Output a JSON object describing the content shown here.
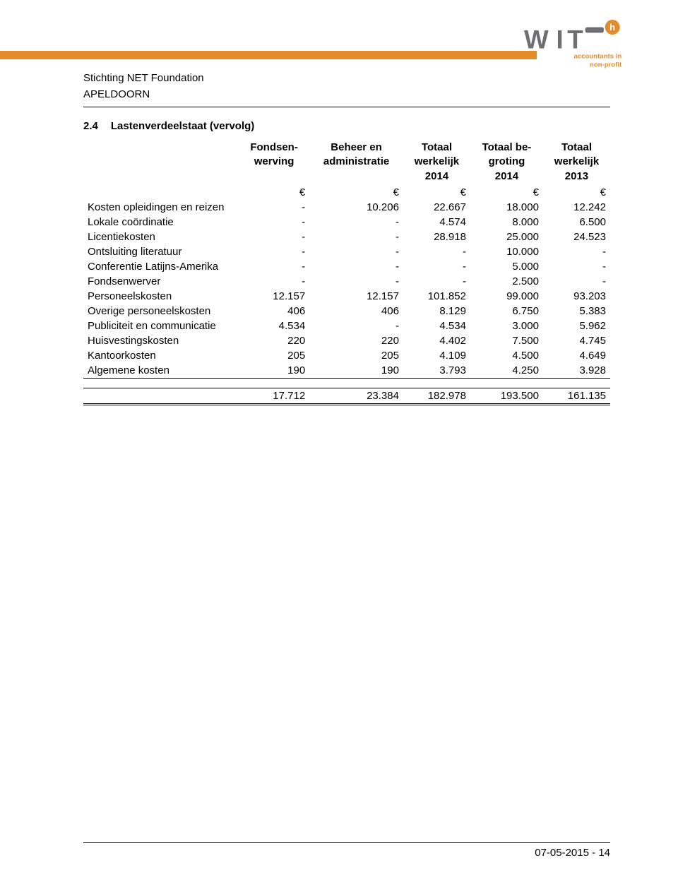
{
  "colors": {
    "accent_orange": "#e28c2b",
    "logo_gray": "#6f6f73",
    "text": "#000000",
    "background": "#ffffff"
  },
  "logo": {
    "text_main": "WIT",
    "tagline_line1": "accountants in",
    "tagline_line2": "non-profit"
  },
  "org": {
    "name": "Stichting NET Foundation",
    "city": "APELDOORN"
  },
  "section": {
    "number": "2.4",
    "title": "Lastenverdeelstaat (vervolg)"
  },
  "table": {
    "type": "table",
    "columns": [
      {
        "key": "label",
        "header": ""
      },
      {
        "key": "c1",
        "header": "Fondsen-werving"
      },
      {
        "key": "c2",
        "header": "Beheer en administratie"
      },
      {
        "key": "c3",
        "header": "Totaal werkelijk 2014"
      },
      {
        "key": "c4",
        "header": "Totaal be-groting 2014"
      },
      {
        "key": "c5",
        "header": "Totaal werkelijk 2013"
      }
    ],
    "currency_symbol": "€",
    "rows": [
      {
        "label": "Kosten opleidingen en reizen",
        "c1": "-",
        "c2": "10.206",
        "c3": "22.667",
        "c4": "18.000",
        "c5": "12.242"
      },
      {
        "label": "Lokale coördinatie",
        "c1": "-",
        "c2": "-",
        "c3": "4.574",
        "c4": "8.000",
        "c5": "6.500"
      },
      {
        "label": "Licentiekosten",
        "c1": "-",
        "c2": "-",
        "c3": "28.918",
        "c4": "25.000",
        "c5": "24.523"
      },
      {
        "label": "Ontsluiting literatuur",
        "c1": "-",
        "c2": "-",
        "c3": "-",
        "c4": "10.000",
        "c5": "-"
      },
      {
        "label": "Conferentie Latijns-Amerika",
        "c1": "-",
        "c2": "-",
        "c3": "-",
        "c4": "5.000",
        "c5": "-"
      },
      {
        "label": "Fondsenwerver",
        "c1": "-",
        "c2": "-",
        "c3": "-",
        "c4": "2.500",
        "c5": "-"
      },
      {
        "label": "Personeelskosten",
        "c1": "12.157",
        "c2": "12.157",
        "c3": "101.852",
        "c4": "99.000",
        "c5": "93.203"
      },
      {
        "label": "Overige personeelskosten",
        "c1": "406",
        "c2": "406",
        "c3": "8.129",
        "c4": "6.750",
        "c5": "5.383"
      },
      {
        "label": "Publiciteit en communicatie",
        "c1": "4.534",
        "c2": "-",
        "c3": "4.534",
        "c4": "3.000",
        "c5": "5.962"
      },
      {
        "label": "Huisvestingskosten",
        "c1": "220",
        "c2": "220",
        "c3": "4.402",
        "c4": "7.500",
        "c5": "4.745"
      },
      {
        "label": "Kantoorkosten",
        "c1": "205",
        "c2": "205",
        "c3": "4.109",
        "c4": "4.500",
        "c5": "4.649"
      },
      {
        "label": "Algemene kosten",
        "c1": "190",
        "c2": "190",
        "c3": "3.793",
        "c4": "4.250",
        "c5": "3.928"
      }
    ],
    "totals": {
      "c1": "17.712",
      "c2": "23.384",
      "c3": "182.978",
      "c4": "193.500",
      "c5": "161.135"
    }
  },
  "footer": {
    "date": "07-05-2015",
    "page": "14"
  }
}
